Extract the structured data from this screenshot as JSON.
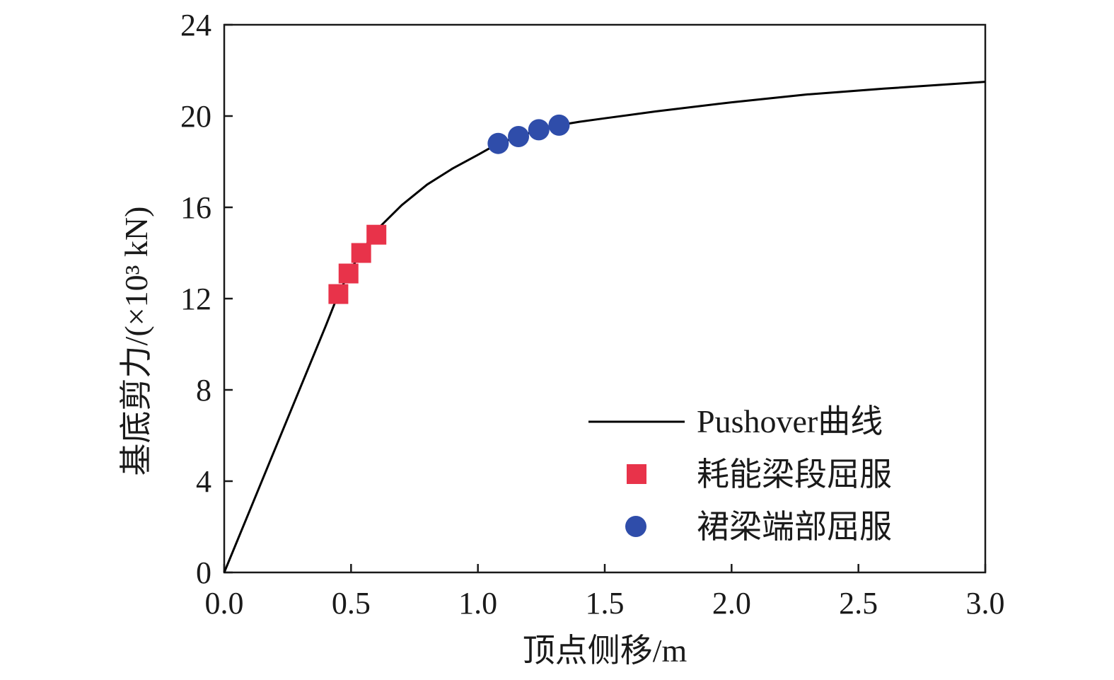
{
  "chart_data": {
    "type": "line",
    "xlabel": "顶点侧移/m",
    "ylabel": "基底剪力/(×10³ kN)",
    "xlim": [
      0,
      3.0
    ],
    "ylim": [
      0,
      24
    ],
    "xticks": [
      "0.0",
      "0.5",
      "1.0",
      "1.5",
      "2.0",
      "2.5",
      "3.0"
    ],
    "yticks": [
      "0",
      "4",
      "8",
      "12",
      "16",
      "20",
      "24"
    ],
    "grid": false,
    "legend_position": "bottom-right",
    "series": [
      {
        "name": "Pushover曲线",
        "kind": "line",
        "color": "#000000",
        "x": [
          0,
          0.1,
          0.2,
          0.3,
          0.4,
          0.45,
          0.5,
          0.55,
          0.6,
          0.7,
          0.8,
          0.9,
          1.0,
          1.08,
          1.16,
          1.24,
          1.32,
          1.4,
          1.5,
          1.7,
          2.0,
          2.3,
          2.6,
          3.0
        ],
        "y": [
          0,
          2.7,
          5.4,
          8.1,
          10.8,
          12.2,
          13.3,
          14.2,
          15.0,
          16.1,
          17.0,
          17.7,
          18.3,
          18.8,
          19.1,
          19.4,
          19.6,
          19.75,
          19.9,
          20.2,
          20.6,
          20.95,
          21.2,
          21.5
        ]
      },
      {
        "name": "耗能梁段屈服",
        "kind": "scatter",
        "marker": "square",
        "color": "#E8334A",
        "x": [
          0.45,
          0.49,
          0.54,
          0.6
        ],
        "y": [
          12.2,
          13.1,
          14.0,
          14.8
        ]
      },
      {
        "name": "裙梁端部屈服",
        "kind": "scatter",
        "marker": "circle",
        "color": "#2F4DAA",
        "x": [
          1.08,
          1.16,
          1.24,
          1.32
        ],
        "y": [
          18.8,
          19.1,
          19.4,
          19.6
        ]
      }
    ]
  }
}
